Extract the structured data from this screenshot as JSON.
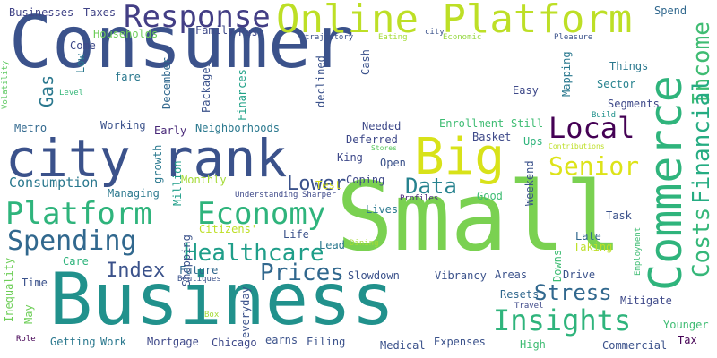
{
  "words": [
    {
      "text": "Consumer",
      "color": "#3b528b"
    },
    {
      "text": "Business",
      "color": "#21918c"
    },
    {
      "text": "Small",
      "color": "#7ad151"
    },
    {
      "text": "Online Platform",
      "color": "#bddf26"
    },
    {
      "text": "city rank",
      "color": "#3b528b"
    },
    {
      "text": "Commerce",
      "color": "#2fb47c"
    },
    {
      "text": "Big",
      "color": "#d8e219"
    },
    {
      "text": "Response",
      "color": "#433e85"
    },
    {
      "text": "Platform",
      "color": "#2fb47c"
    },
    {
      "text": "Economy",
      "color": "#2fb47c"
    },
    {
      "text": "Spending",
      "color": "#31688e"
    },
    {
      "text": "Local",
      "color": "#440154"
    },
    {
      "text": "Insights",
      "color": "#2fb47c"
    },
    {
      "text": "Senior",
      "color": "#dde318"
    },
    {
      "text": "Income",
      "color": "#3fbc73"
    },
    {
      "text": "Financial",
      "color": "#25ac82"
    },
    {
      "text": "Costs",
      "color": "#35b779"
    },
    {
      "text": "Healthcare",
      "color": "#1f9e89"
    },
    {
      "text": "Prices",
      "color": "#31688e"
    },
    {
      "text": "Index",
      "color": "#3b528b"
    },
    {
      "text": "Stress",
      "color": "#31688e"
    },
    {
      "text": "Lower",
      "color": "#3b528b"
    },
    {
      "text": "Data",
      "color": "#26828e"
    },
    {
      "text": "Consumption",
      "color": "#2a788e"
    },
    {
      "text": "Gas",
      "color": "#2a788e"
    },
    {
      "text": "Businesses",
      "color": "#414487"
    },
    {
      "text": "Taxes",
      "color": "#414487"
    },
    {
      "text": "Spend",
      "color": "#31688e"
    },
    {
      "text": "Households",
      "color": "#6ece58"
    },
    {
      "text": "Family",
      "color": "#3e4989"
    },
    {
      "text": "Past",
      "color": "#3e4989"
    },
    {
      "text": "trajectory",
      "color": "#3b528b"
    },
    {
      "text": "Eating",
      "color": "#a5db36"
    },
    {
      "text": "city",
      "color": "#3b528b"
    },
    {
      "text": "Economic",
      "color": "#95d840"
    },
    {
      "text": "Pleasure",
      "color": "#3b528b"
    },
    {
      "text": "Come",
      "color": "#3e4989"
    },
    {
      "text": "Low",
      "color": "#2a788e"
    },
    {
      "text": "fare",
      "color": "#2a788e"
    },
    {
      "text": "December",
      "color": "#31688e"
    },
    {
      "text": "Packages",
      "color": "#3b528b"
    },
    {
      "text": "Finances",
      "color": "#1fa187"
    },
    {
      "text": "declined",
      "color": "#3b528b"
    },
    {
      "text": "Cash",
      "color": "#3b528b"
    },
    {
      "text": "Easy",
      "color": "#3e4989"
    },
    {
      "text": "Mapping",
      "color": "#2a788e"
    },
    {
      "text": "Things",
      "color": "#2a788e"
    },
    {
      "text": "Sector",
      "color": "#26828e"
    },
    {
      "text": "Segments",
      "color": "#3e4989"
    },
    {
      "text": "Build",
      "color": "#21918c"
    },
    {
      "text": "Level",
      "color": "#35b779"
    },
    {
      "text": "Volatility",
      "color": "#5ec962"
    },
    {
      "text": "Working",
      "color": "#3b528b"
    },
    {
      "text": "Early",
      "color": "#482878"
    },
    {
      "text": "Neighborhoods",
      "color": "#2a788e"
    },
    {
      "text": "Needed",
      "color": "#3e4989"
    },
    {
      "text": "Enrollment",
      "color": "#3fbc73"
    },
    {
      "text": "Still",
      "color": "#3fbc73"
    },
    {
      "text": "Metro",
      "color": "#31688e"
    },
    {
      "text": "Deferred",
      "color": "#3e4989"
    },
    {
      "text": "Basket",
      "color": "#3e4989"
    },
    {
      "text": "Ups",
      "color": "#2fb47c"
    },
    {
      "text": "Contributions",
      "color": "#bddf26"
    },
    {
      "text": "King",
      "color": "#3e4989"
    },
    {
      "text": "Open",
      "color": "#3b528b"
    },
    {
      "text": "Stores",
      "color": "#5ec962"
    },
    {
      "text": "Monthly",
      "color": "#a5db36"
    },
    {
      "text": "Test",
      "color": "#d8e219"
    },
    {
      "text": "Coping",
      "color": "#3e4989"
    },
    {
      "text": "growth",
      "color": "#2a788e"
    },
    {
      "text": "Million",
      "color": "#1f9e89"
    },
    {
      "text": "Managing",
      "color": "#2a788e"
    },
    {
      "text": "Understanding",
      "color": "#3e4989"
    },
    {
      "text": "Sharper",
      "color": "#3e4989"
    },
    {
      "text": "Good",
      "color": "#3fbc73"
    },
    {
      "text": "Weekend",
      "color": "#3b528b"
    },
    {
      "text": "Profiles",
      "color": "#482878"
    },
    {
      "text": "Employment",
      "color": "#3fbc73"
    },
    {
      "text": "Lives",
      "color": "#2a788e"
    },
    {
      "text": "Task",
      "color": "#3b528b"
    },
    {
      "text": "Shopping",
      "color": "#3b528b"
    },
    {
      "text": "Citizens'",
      "color": "#bddf26"
    },
    {
      "text": "Life",
      "color": "#3b528b"
    },
    {
      "text": "Downs",
      "color": "#3fbc73"
    },
    {
      "text": "Late",
      "color": "#31688e"
    },
    {
      "text": "Taking",
      "color": "#bddf26"
    },
    {
      "text": "Lead",
      "color": "#2a788e"
    },
    {
      "text": "Dining",
      "color": "#a5db36"
    },
    {
      "text": "Inequality",
      "color": "#6ece58"
    },
    {
      "text": "Care",
      "color": "#2fb47c"
    },
    {
      "text": "Future",
      "color": "#31688e"
    },
    {
      "text": "Boutiques",
      "color": "#3b528b"
    },
    {
      "text": "Areas",
      "color": "#3b528b"
    },
    {
      "text": "Drive",
      "color": "#3b528b"
    },
    {
      "text": "Time",
      "color": "#3b528b"
    },
    {
      "text": "Slowdown",
      "color": "#3b528b"
    },
    {
      "text": "Vibrancy",
      "color": "#3b528b"
    },
    {
      "text": "Resets",
      "color": "#31688e"
    },
    {
      "text": "Mitigate",
      "color": "#3e4989"
    },
    {
      "text": "everyday",
      "color": "#3b528b"
    },
    {
      "text": "May",
      "color": "#6ece58"
    },
    {
      "text": "Younger",
      "color": "#3fbc73"
    },
    {
      "text": "Box",
      "color": "#a5db36"
    },
    {
      "text": "Travel",
      "color": "#3e4989"
    },
    {
      "text": "Getting",
      "color": "#2a788e"
    },
    {
      "text": "Work",
      "color": "#2a788e"
    },
    {
      "text": "Mortgage",
      "color": "#3e4989"
    },
    {
      "text": "Chicago",
      "color": "#3e4989"
    },
    {
      "text": "earns",
      "color": "#3b528b"
    },
    {
      "text": "Filing",
      "color": "#3b528b"
    },
    {
      "text": "Medical",
      "color": "#3b528b"
    },
    {
      "text": "Expenses",
      "color": "#3b528b"
    },
    {
      "text": "High",
      "color": "#3fbc73"
    },
    {
      "text": "Commercial",
      "color": "#3b528b"
    },
    {
      "text": "Tax",
      "color": "#440154"
    },
    {
      "text": "Role",
      "color": "#440154"
    }
  ]
}
